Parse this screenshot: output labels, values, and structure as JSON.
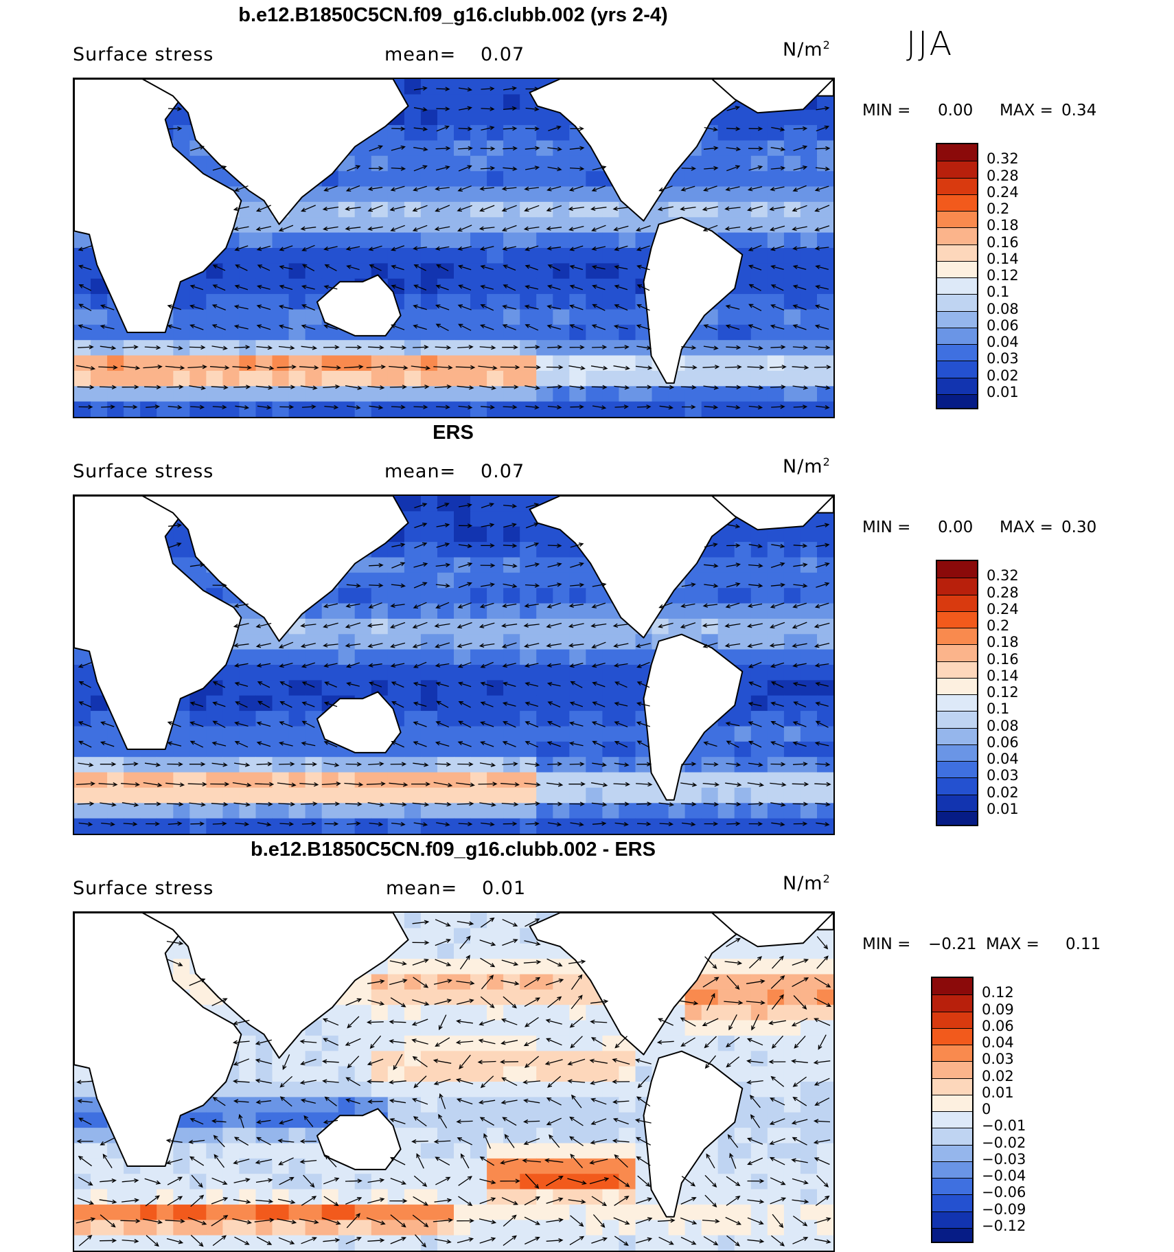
{
  "season": "JJA",
  "panels": [
    {
      "title": "b.e12.B1850C5CN.f09_g16.clubb.002 (yrs 2-4)",
      "variable": "Surface stress",
      "mean_label": "mean=",
      "mean_value": "0.07",
      "units": "N/m",
      "units_exp": "2",
      "min_label": "MIN =",
      "min_value": "0.00",
      "max_label": "MAX =",
      "max_value": "0.34",
      "colorbar_labels": [
        "0.32",
        "0.28",
        "0.24",
        "0.2",
        "0.18",
        "0.16",
        "0.14",
        "0.12",
        "0.1",
        "0.08",
        "0.06",
        "0.04",
        "0.03",
        "0.02",
        "0.01"
      ],
      "colorbar_colors": [
        "#8b0a0a",
        "#b8200c",
        "#d93a0f",
        "#f25a1c",
        "#f98a4e",
        "#fbb48b",
        "#fdd7bb",
        "#fdf0e0",
        "#dde9f8",
        "#bfd4f2",
        "#95b6ec",
        "#6a95e6",
        "#3f70e0",
        "#2451d0",
        "#1234b0",
        "#061c86"
      ]
    },
    {
      "title": "ERS",
      "variable": "Surface stress",
      "mean_label": "mean=",
      "mean_value": "0.07",
      "units": "N/m",
      "units_exp": "2",
      "min_label": "MIN =",
      "min_value": "0.00",
      "max_label": "MAX =",
      "max_value": "0.30",
      "colorbar_labels": [
        "0.32",
        "0.28",
        "0.24",
        "0.2",
        "0.18",
        "0.16",
        "0.14",
        "0.12",
        "0.1",
        "0.08",
        "0.06",
        "0.04",
        "0.03",
        "0.02",
        "0.01"
      ],
      "colorbar_colors": [
        "#8b0a0a",
        "#b8200c",
        "#d93a0f",
        "#f25a1c",
        "#f98a4e",
        "#fbb48b",
        "#fdd7bb",
        "#fdf0e0",
        "#dde9f8",
        "#bfd4f2",
        "#95b6ec",
        "#6a95e6",
        "#3f70e0",
        "#2451d0",
        "#1234b0",
        "#061c86"
      ]
    },
    {
      "title": "b.e12.B1850C5CN.f09_g16.clubb.002 - ERS",
      "variable": "Surface stress",
      "mean_label": "mean=",
      "mean_value": "0.01",
      "units": "N/m",
      "units_exp": "2",
      "min_label": "MIN =",
      "min_value": "−0.21",
      "max_label": "MAX =",
      "max_value": "0.11",
      "colorbar_labels": [
        "0.12",
        "0.09",
        "0.06",
        "0.04",
        "0.03",
        "0.02",
        "0.01",
        "0",
        "−0.01",
        "−0.02",
        "−0.03",
        "−0.04",
        "−0.06",
        "−0.09",
        "−0.12"
      ],
      "colorbar_colors": [
        "#8b0a0a",
        "#b8200c",
        "#d93a0f",
        "#f25a1c",
        "#f98a4e",
        "#fbb48b",
        "#fdd7bb",
        "#fdf0e0",
        "#dde9f8",
        "#bfd4f2",
        "#95b6ec",
        "#6a95e6",
        "#3f70e0",
        "#2451d0",
        "#1234b0",
        "#061c86"
      ]
    }
  ]
}
